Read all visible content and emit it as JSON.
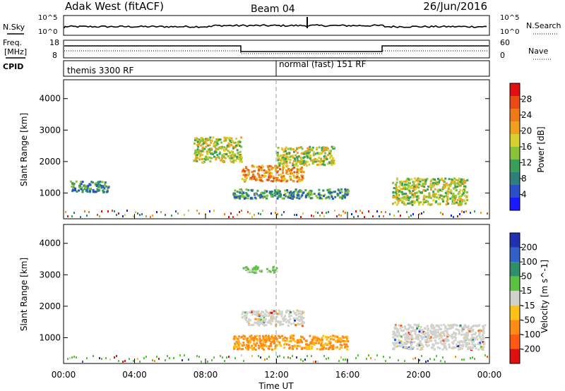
{
  "header": {
    "station": "Adak West (fitACF)",
    "beam": "Beam 04",
    "date": "26/Jun/2016"
  },
  "noise_panel": {
    "left_label": "N.Sky",
    "right_label": "N.Search",
    "tick_top": "10^5",
    "tick_bottom": "10^0"
  },
  "freq_panel": {
    "left_label_line1": "Freq.",
    "left_label_line2": "[MHz]",
    "cpid_label": "CPID",
    "right_label": "Nave",
    "left_ticks": [
      "18",
      "8"
    ],
    "right_ticks": [
      "60",
      "0"
    ],
    "cpid_segments": [
      {
        "text": "themis 3300 RF"
      },
      {
        "text": "normal (fast) 151 RF"
      }
    ]
  },
  "time_axis": {
    "label": "Time UT",
    "ticks": [
      "00:00",
      "04:00",
      "08:00",
      "12:00",
      "16:00",
      "20:00",
      "00:00"
    ]
  },
  "chart_data": [
    {
      "type": "heatmap",
      "title": "Power",
      "ylabel": "Slant Range [km]",
      "xlabel": "",
      "ylim": [
        180,
        4600
      ],
      "xlim_hours": [
        0,
        24
      ],
      "y_ticks": [
        1000,
        2000,
        3000,
        4000
      ],
      "colorbar": {
        "label": "Power [dB]",
        "ticks": [
          "4",
          "8",
          "12",
          "16",
          "20",
          "24",
          "28"
        ],
        "colors": [
          "#1a1aff",
          "#2a50c8",
          "#2f7f7a",
          "#3aa055",
          "#8ac23a",
          "#d8d030",
          "#f0a020",
          "#f07a18",
          "#e84b14",
          "#e01010"
        ]
      },
      "echo_regions": [
        {
          "t": [
            10.0,
            13.5
          ],
          "r": [
            1400,
            1900
          ],
          "level": "strong"
        },
        {
          "t": [
            7.3,
            10.0
          ],
          "r": [
            2000,
            2800
          ],
          "level": "medium"
        },
        {
          "t": [
            12.0,
            15.2
          ],
          "r": [
            1900,
            2500
          ],
          "level": "medium"
        },
        {
          "t": [
            9.5,
            16.0
          ],
          "r": [
            850,
            1150
          ],
          "level": "weak"
        },
        {
          "t": [
            18.5,
            22.7
          ],
          "r": [
            650,
            1500
          ],
          "level": "medium"
        },
        {
          "t": [
            0.3,
            2.5
          ],
          "r": [
            1050,
            1400
          ],
          "level": "weak"
        }
      ]
    },
    {
      "type": "heatmap",
      "title": "Velocity",
      "ylabel": "Slant Range [km]",
      "xlabel": "Time UT",
      "ylim": [
        180,
        4600
      ],
      "xlim_hours": [
        0,
        24
      ],
      "y_ticks": [
        1000,
        2000,
        3000,
        4000
      ],
      "colorbar": {
        "label": "Velocity [m s^-1]",
        "ticks": [
          "200",
          "100",
          "50",
          "15",
          "-15",
          "-50",
          "-100",
          "-200"
        ],
        "colors": [
          "#2030b0",
          "#3060c8",
          "#2f8f6a",
          "#5cc040",
          "#d2d2cc",
          "#ffc018",
          "#ff8a14",
          "#ff5a10",
          "#e01010"
        ]
      },
      "echo_regions": [
        {
          "t": [
            10.0,
            13.5
          ],
          "r": [
            1400,
            1900
          ],
          "velocity": "~0 (ground scatter)"
        },
        {
          "t": [
            9.5,
            16.0
          ],
          "r": [
            650,
            1100
          ],
          "velocity": "-50 to -100"
        },
        {
          "t": [
            18.5,
            23.7
          ],
          "r": [
            650,
            1450
          ],
          "velocity": "~0 (ground scatter)"
        },
        {
          "t": [
            10.0,
            12.0
          ],
          "r": [
            3100,
            3300
          ],
          "velocity": "15 to 50"
        }
      ]
    }
  ]
}
